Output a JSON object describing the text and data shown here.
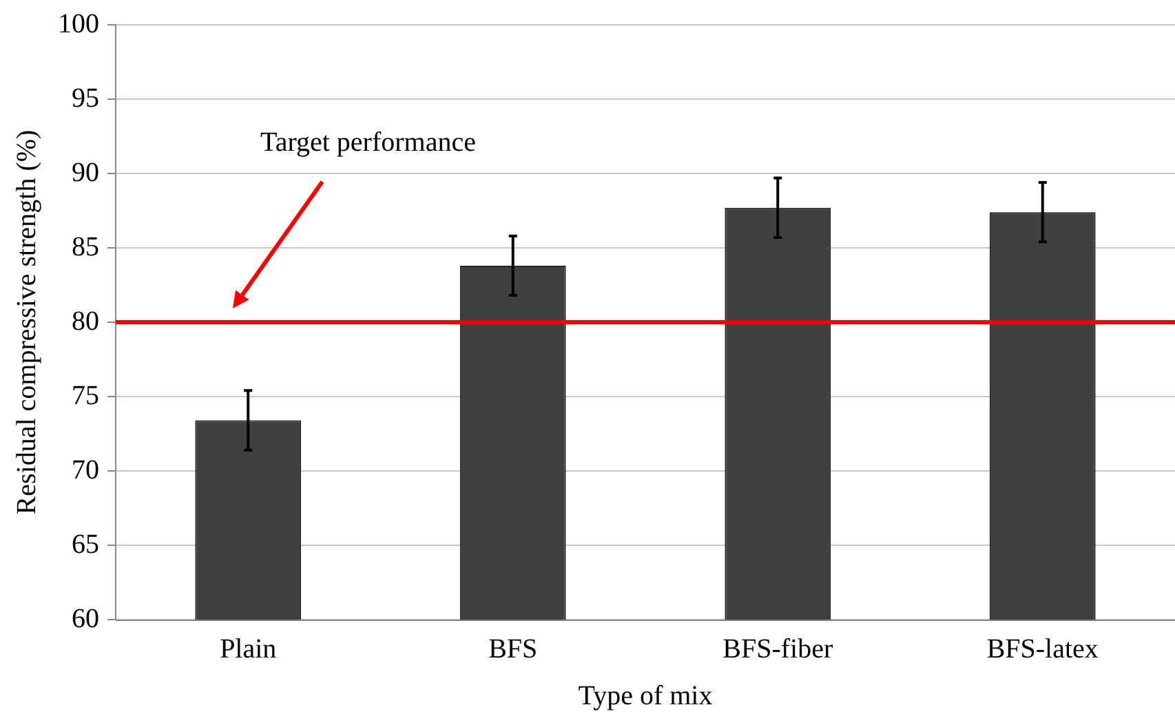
{
  "chart_data": {
    "type": "bar",
    "xlabel": "Type of mix",
    "ylabel": "Residual compressive strength (%)",
    "categories": [
      "Plain",
      "BFS",
      "BFS-fiber",
      "BFS-latex"
    ],
    "values": [
      73.4,
      83.8,
      87.7,
      87.4
    ],
    "errors": [
      2,
      2,
      2,
      2
    ],
    "color": "#404040",
    "ylim": [
      60,
      100
    ],
    "yticks": [
      60,
      65,
      70,
      75,
      80,
      85,
      90,
      95,
      100
    ],
    "grid": "y",
    "legend": false,
    "annotations": [
      "Target performance"
    ],
    "ref_lines": [
      {
        "axis": "y",
        "value": 80,
        "color": "#ff0000"
      }
    ]
  }
}
